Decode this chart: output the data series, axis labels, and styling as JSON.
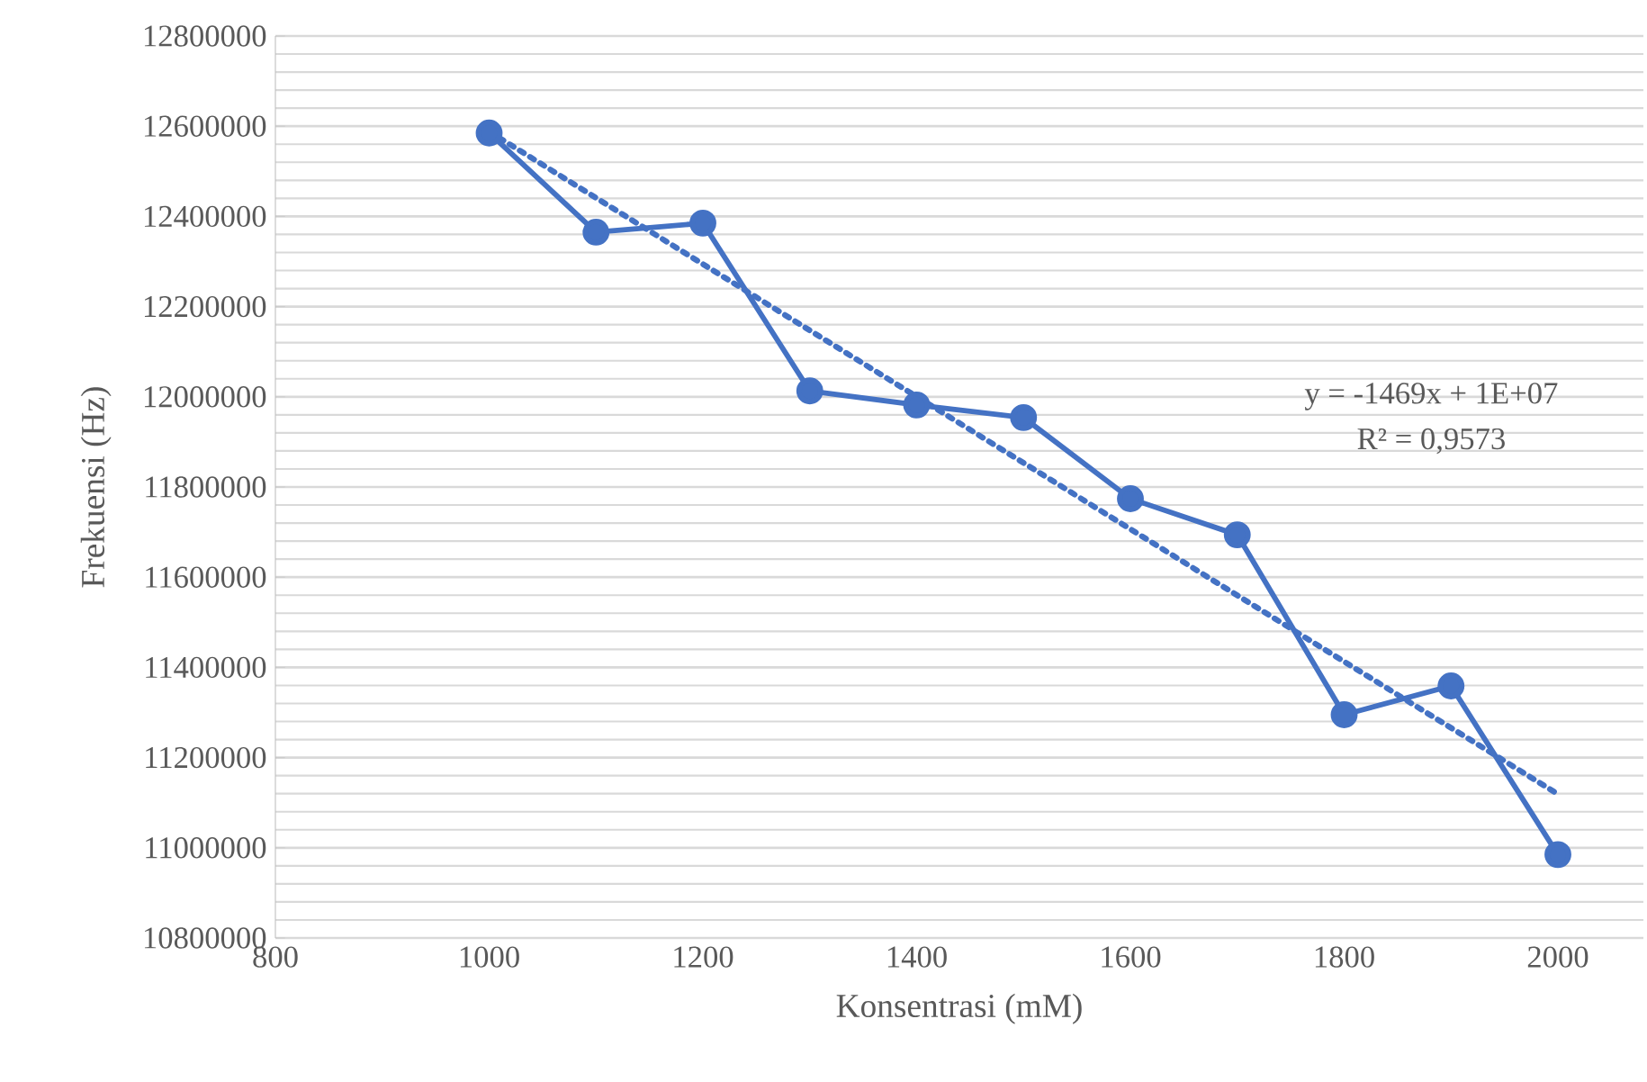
{
  "chart_data": {
    "type": "line",
    "xlabel": "Konsentrasi (mM)",
    "ylabel": "Frekuensi (Hz)",
    "x": [
      1000,
      1100,
      1200,
      1300,
      1400,
      1500,
      1600,
      1700,
      1800,
      1900,
      2000
    ],
    "series": [
      {
        "color": "#4472c4",
        "marker": "circle",
        "line_style": "solid",
        "values": [
          12585000,
          12365000,
          12385000,
          12013000,
          11982000,
          11954000,
          11774000,
          11694000,
          11295000,
          11359000,
          10985000
        ]
      },
      {
        "type": "line",
        "color": "#4472c4",
        "marker": "none",
        "line_style": "dotted",
        "x": [
          1000,
          2000
        ],
        "values": [
          12588000,
          11119000
        ]
      }
    ],
    "xlim": [
      800,
      2080
    ],
    "xticks": [
      800,
      1000,
      1200,
      1400,
      1600,
      1800,
      2000
    ],
    "ylim": [
      10800000,
      12800000
    ],
    "yticks": [
      10800000,
      11000000,
      11200000,
      11400000,
      11600000,
      11800000,
      12000000,
      12200000,
      12400000,
      12600000,
      12800000
    ],
    "grid": "y",
    "annotations": [
      "y = -1469x + 1E+07",
      "R² = 0,9573"
    ]
  }
}
